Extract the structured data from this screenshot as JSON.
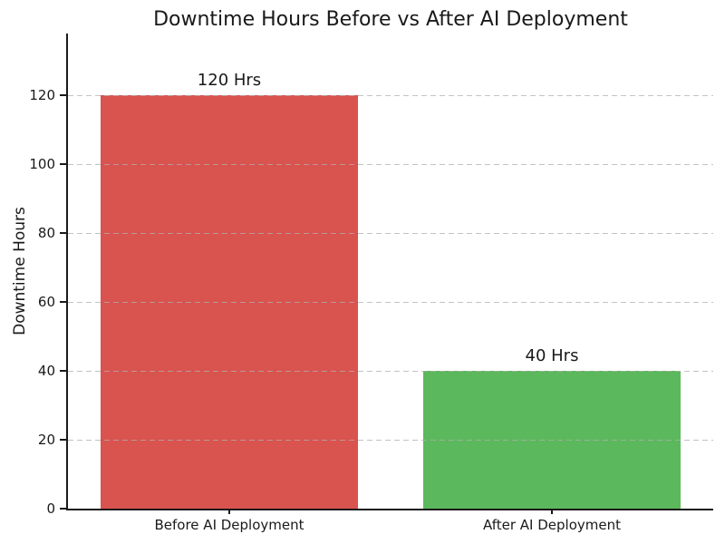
{
  "figure": {
    "background": "#ffffff",
    "text_color": "#1a1a1a"
  },
  "chart_data": {
    "type": "bar",
    "title": "Downtime Hours Before vs After AI Deployment",
    "xlabel": "",
    "ylabel": "Downtime Hours",
    "categories": [
      "Before AI Deployment",
      "After AI Deployment"
    ],
    "values": [
      120,
      40
    ],
    "bar_labels": [
      "120 Hrs",
      "40 Hrs"
    ],
    "bar_colors": [
      "#d9534f",
      "#5cb85c"
    ],
    "ylim": [
      0,
      138
    ],
    "yticks": [
      0,
      20,
      40,
      60,
      80,
      100,
      120
    ],
    "grid": {
      "axis": "y",
      "style": "dashed",
      "color": "#cccccc",
      "over_bars": true
    },
    "legend": "none"
  }
}
